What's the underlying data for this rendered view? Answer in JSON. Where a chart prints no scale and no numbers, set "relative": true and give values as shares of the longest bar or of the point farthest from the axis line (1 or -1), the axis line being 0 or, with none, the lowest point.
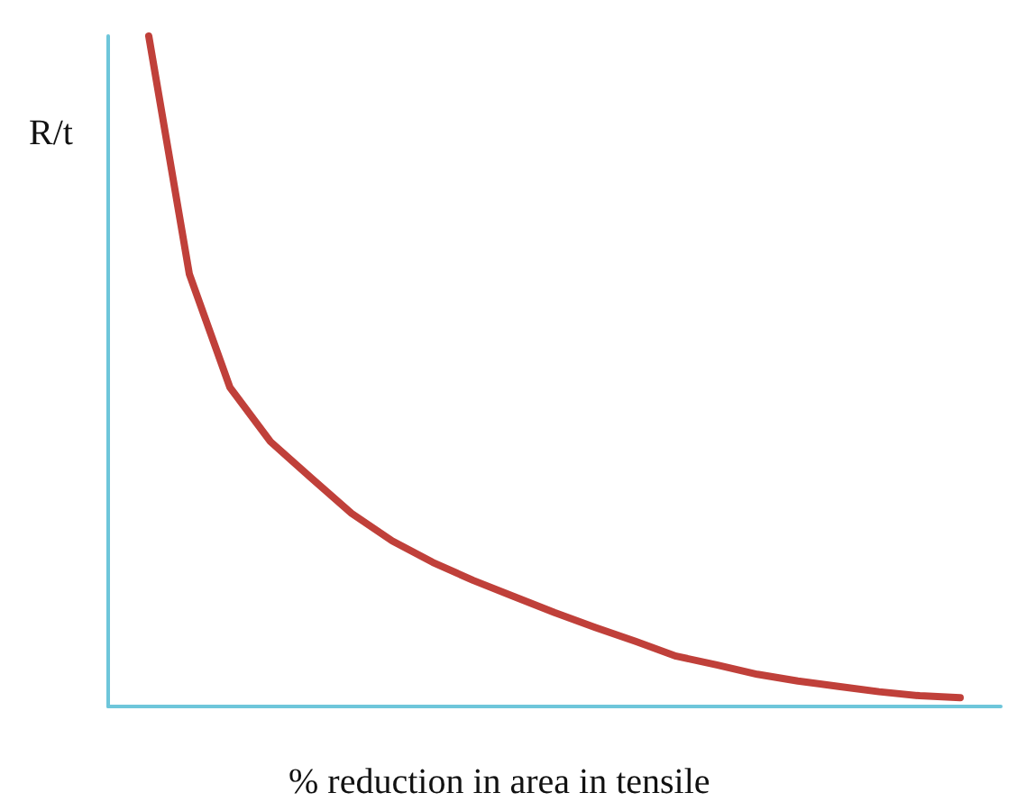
{
  "chart_data": {
    "type": "line",
    "xlabel": "% reduction in area in tensile",
    "ylabel": "R/t",
    "relative": true,
    "marker": "none",
    "color": "#c0403a",
    "categories": [
      null,
      null,
      null,
      null,
      null,
      null,
      null,
      null,
      null,
      null,
      null,
      null,
      null,
      null,
      null,
      null,
      null,
      null,
      null,
      null,
      null
    ],
    "values": [
      1.0,
      0.645,
      0.476,
      0.395,
      0.341,
      0.288,
      0.247,
      0.215,
      0.188,
      0.164,
      0.14,
      0.118,
      0.097,
      0.075,
      0.062,
      0.048,
      0.038,
      0.03,
      0.022,
      0.016,
      0.013
    ]
  }
}
